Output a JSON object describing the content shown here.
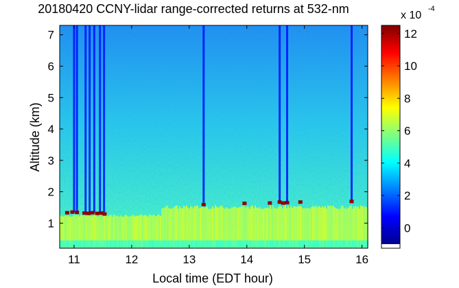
{
  "chart_data": {
    "type": "heatmap",
    "title": "20180420 CCNY-lidar range-corrected returns at 532-nm",
    "xlabel": "Local time (EDT hour)",
    "ylabel": "Altitude (km)",
    "xlim": [
      10.75,
      16.1
    ],
    "ylim": [
      0.2,
      7.3
    ],
    "xticks": [
      11,
      12,
      13,
      14,
      15,
      16
    ],
    "yticks": [
      1,
      2,
      3,
      4,
      5,
      6,
      7
    ],
    "colorbar": {
      "range": [
        -1,
        12.5
      ],
      "ticks": [
        0,
        2,
        4,
        6,
        8,
        10,
        12
      ],
      "exponent_label": "x 10",
      "exponent": "-4"
    },
    "cloud_base_points": [
      {
        "x": 10.88,
        "y": 1.32
      },
      {
        "x": 10.97,
        "y": 1.34
      },
      {
        "x": 11.05,
        "y": 1.33
      },
      {
        "x": 11.18,
        "y": 1.31
      },
      {
        "x": 11.25,
        "y": 1.3
      },
      {
        "x": 11.32,
        "y": 1.32
      },
      {
        "x": 11.4,
        "y": 1.3
      },
      {
        "x": 11.47,
        "y": 1.31
      },
      {
        "x": 11.53,
        "y": 1.28
      },
      {
        "x": 13.25,
        "y": 1.58
      },
      {
        "x": 13.96,
        "y": 1.62
      },
      {
        "x": 14.4,
        "y": 1.63
      },
      {
        "x": 14.57,
        "y": 1.66
      },
      {
        "x": 14.63,
        "y": 1.63
      },
      {
        "x": 14.7,
        "y": 1.64
      },
      {
        "x": 14.93,
        "y": 1.66
      },
      {
        "x": 15.82,
        "y": 1.68
      }
    ],
    "strong_signal_columns": [
      11.0,
      11.05,
      11.2,
      11.27,
      11.35,
      11.45,
      11.52,
      13.25,
      14.57,
      14.7,
      15.82
    ]
  },
  "colors": {
    "colormap": [
      "#00008f",
      "#0000ff",
      "#0080ff",
      "#00ffff",
      "#80ff80",
      "#ffff00",
      "#ff8000",
      "#ff0000",
      "#800000"
    ]
  }
}
